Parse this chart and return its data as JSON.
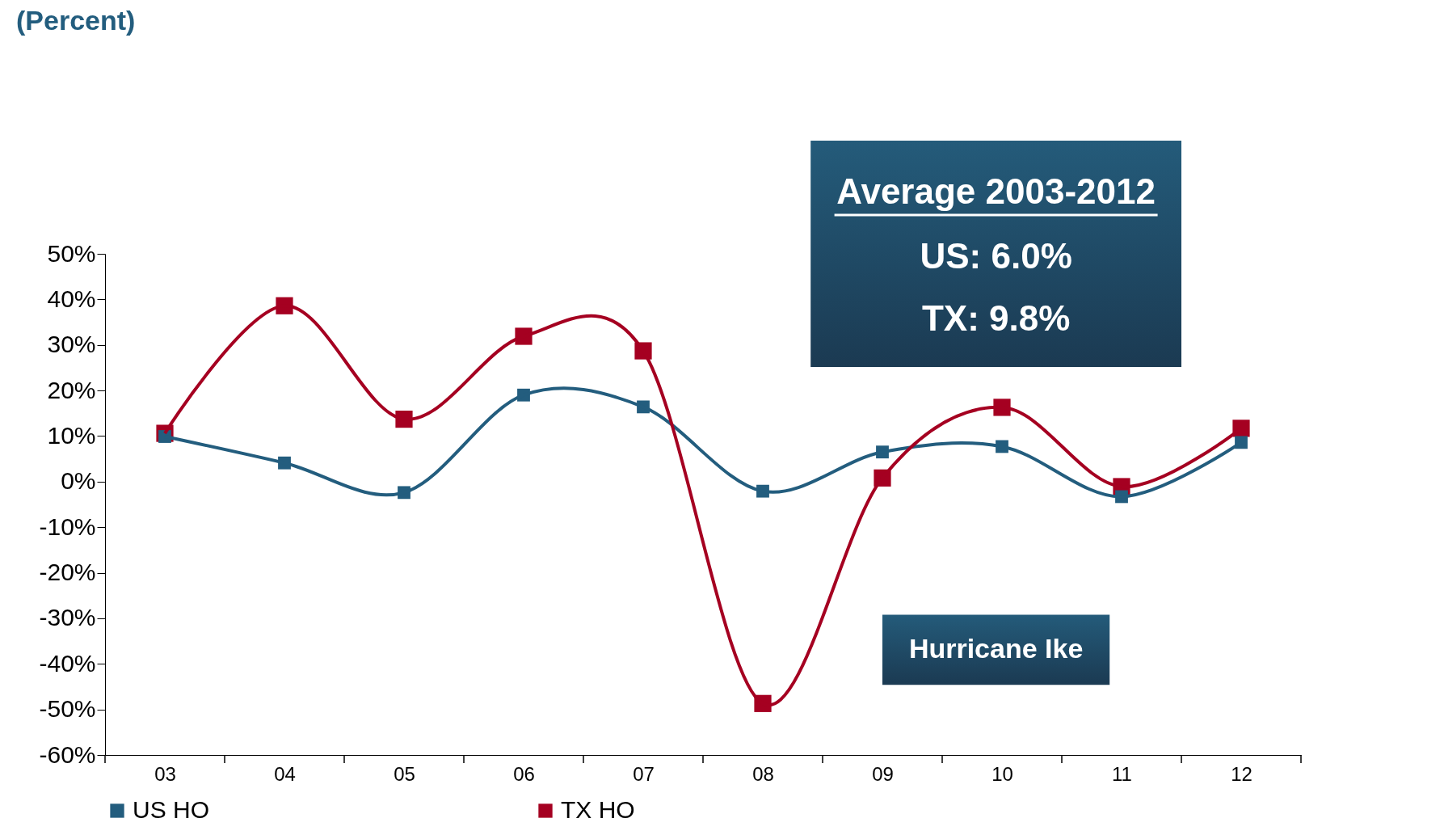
{
  "chart_data": {
    "type": "line",
    "title": "(Percent)",
    "categories": [
      "03",
      "04",
      "05",
      "06",
      "07",
      "08",
      "09",
      "10",
      "11",
      "12"
    ],
    "series": [
      {
        "name": "US HO",
        "color": "#235d7e",
        "values": [
          9.9,
          4.1,
          -2.4,
          19,
          16.4,
          -2.1,
          6.5,
          7.7,
          -3.3,
          8.6
        ]
      },
      {
        "name": "TX HO",
        "color": "#a50021",
        "values": [
          10.6,
          38.6,
          13.7,
          31.9,
          28.7,
          -48.7,
          0.8,
          16.3,
          -1.1,
          11.7
        ]
      }
    ],
    "ylim": [
      -60,
      50
    ],
    "yticks": [
      {
        "value": -60,
        "label": "-60%"
      },
      {
        "value": -50,
        "label": "-50%"
      },
      {
        "value": -40,
        "label": "-40%"
      },
      {
        "value": -30,
        "label": "-30%"
      },
      {
        "value": -20,
        "label": "-20%"
      },
      {
        "value": -10,
        "label": "-10%"
      },
      {
        "value": 0,
        "label": "0%"
      },
      {
        "value": 10,
        "label": "10%"
      },
      {
        "value": 20,
        "label": "20%"
      },
      {
        "value": 30,
        "label": "30%"
      },
      {
        "value": 40,
        "label": "40%"
      },
      {
        "value": 50,
        "label": "50%"
      }
    ],
    "annotations": [
      "Average 2003-2012",
      "US: 6.0%",
      "TX: 9.8%",
      "Hurricane Ike"
    ],
    "marker": "square",
    "line_style": "solid",
    "grid": false,
    "legend": "bottom"
  }
}
